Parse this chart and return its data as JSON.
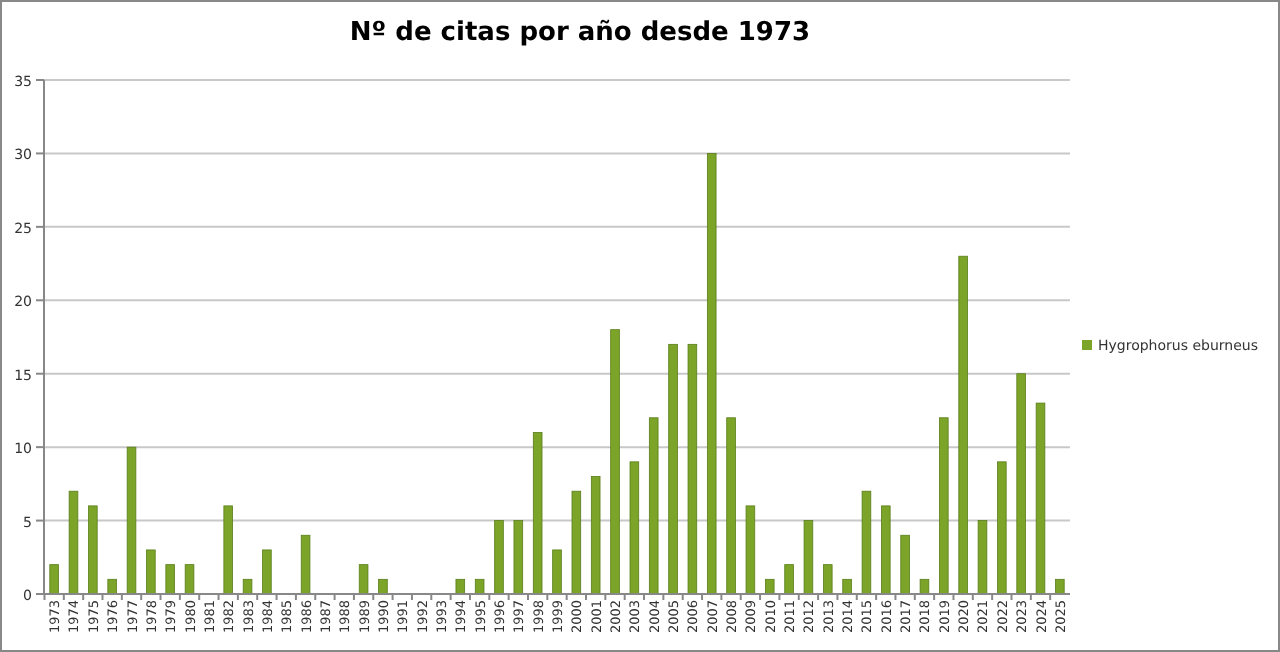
{
  "chart_data": {
    "type": "bar",
    "title": "Nº de citas por año desde 1973",
    "categories": [
      "1973",
      "1974",
      "1975",
      "1976",
      "1977",
      "1978",
      "1979",
      "1980",
      "1981",
      "1982",
      "1983",
      "1984",
      "1985",
      "1986",
      "1987",
      "1988",
      "1989",
      "1990",
      "1991",
      "1992",
      "1993",
      "1994",
      "1995",
      "1996",
      "1997",
      "1998",
      "1999",
      "2000",
      "2001",
      "2002",
      "2003",
      "2004",
      "2005",
      "2006",
      "2007",
      "2008",
      "2009",
      "2010",
      "2011",
      "2012",
      "2013",
      "2014",
      "2015",
      "2016",
      "2017",
      "2018",
      "2019",
      "2020",
      "2021",
      "2022",
      "2023",
      "2024",
      "2025"
    ],
    "series": [
      {
        "name": "Hygrophorus eburneus",
        "color": "#7ba428",
        "values": [
          2,
          7,
          6,
          1,
          10,
          3,
          2,
          2,
          0,
          6,
          1,
          3,
          0,
          4,
          0,
          0,
          2,
          1,
          0,
          0,
          0,
          1,
          1,
          5,
          5,
          11,
          3,
          7,
          8,
          18,
          9,
          12,
          17,
          17,
          30,
          12,
          6,
          1,
          2,
          5,
          2,
          1,
          7,
          6,
          4,
          1,
          12,
          23,
          5,
          9,
          15,
          13,
          1
        ]
      }
    ],
    "ylim": [
      0,
      35
    ],
    "yticks": [
      0,
      5,
      10,
      15,
      20,
      25,
      30,
      35
    ],
    "grid": "y",
    "legend": "right"
  }
}
